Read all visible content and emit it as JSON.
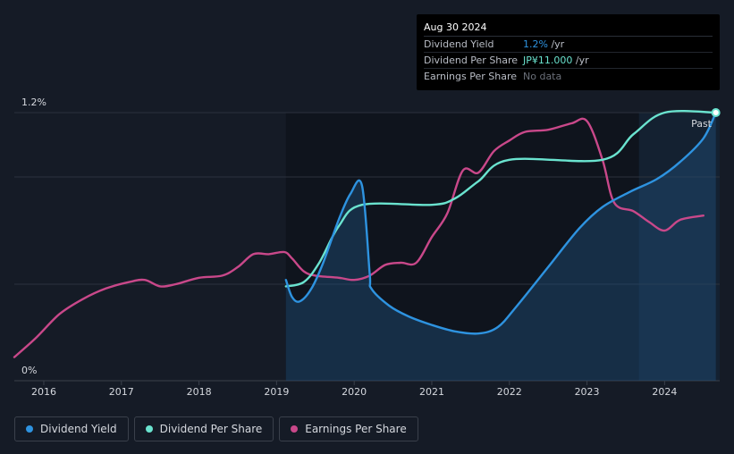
{
  "tooltip": {
    "date": "Aug 30 2024",
    "rows": [
      {
        "label": "Dividend Yield",
        "value": "1.2%",
        "unit": " /yr",
        "color": "#2e93e0"
      },
      {
        "label": "Dividend Per Share",
        "value": "JP¥11.000",
        "unit": " /yr",
        "color": "#6ae3cf"
      },
      {
        "label": "Earnings Per Share",
        "value": "No data",
        "unit": "",
        "color": "#6b707a"
      }
    ]
  },
  "past_label": "Past",
  "legend": [
    {
      "label": "Dividend Yield",
      "color": "#2e93e0"
    },
    {
      "label": "Dividend Per Share",
      "color": "#6ae3cf"
    },
    {
      "label": "Earnings Per Share",
      "color": "#c9488a"
    }
  ],
  "chart_data": {
    "type": "line",
    "title": "",
    "xlabel": "",
    "ylabel": "",
    "ylim": [
      0,
      1.2
    ],
    "y_ticks": [
      "0%",
      "1.2%"
    ],
    "x_ticks": [
      "2016",
      "2017",
      "2018",
      "2019",
      "2020",
      "2021",
      "2022",
      "2023",
      "2024"
    ],
    "xlim": [
      2015.62,
      2024.71
    ],
    "past_region_start": 2023.67,
    "grid": true,
    "legend_position": "bottom",
    "series": [
      {
        "name": "Dividend Yield",
        "color": "#2e93e0",
        "filled": true,
        "points": [
          [
            2019.12,
            0.42
          ],
          [
            2019.2,
            0.34
          ],
          [
            2019.3,
            0.32
          ],
          [
            2019.45,
            0.38
          ],
          [
            2019.6,
            0.5
          ],
          [
            2019.8,
            0.7
          ],
          [
            2019.95,
            0.82
          ],
          [
            2020.1,
            0.86
          ],
          [
            2020.2,
            0.45
          ],
          [
            2020.22,
            0.38
          ],
          [
            2020.45,
            0.3
          ],
          [
            2020.7,
            0.25
          ],
          [
            2021.0,
            0.21
          ],
          [
            2021.3,
            0.18
          ],
          [
            2021.6,
            0.17
          ],
          [
            2021.85,
            0.2
          ],
          [
            2022.1,
            0.3
          ],
          [
            2022.5,
            0.48
          ],
          [
            2022.9,
            0.66
          ],
          [
            2023.2,
            0.76
          ],
          [
            2023.55,
            0.83
          ],
          [
            2023.9,
            0.89
          ],
          [
            2024.2,
            0.97
          ],
          [
            2024.5,
            1.08
          ],
          [
            2024.66,
            1.2
          ]
        ]
      },
      {
        "name": "Dividend Per Share",
        "color": "#6ae3cf",
        "filled": false,
        "points": [
          [
            2019.12,
            0.39
          ],
          [
            2019.35,
            0.41
          ],
          [
            2019.55,
            0.5
          ],
          [
            2019.8,
            0.67
          ],
          [
            2020.1,
            0.77
          ],
          [
            2021.0,
            0.77
          ],
          [
            2021.3,
            0.8
          ],
          [
            2021.6,
            0.88
          ],
          [
            2022.0,
            0.98
          ],
          [
            2023.2,
            0.98
          ],
          [
            2023.6,
            1.1
          ],
          [
            2024.0,
            1.2
          ],
          [
            2024.66,
            1.2
          ]
        ]
      },
      {
        "name": "Earnings Per Share",
        "color": "#c9488a",
        "filled": false,
        "points": [
          [
            2015.62,
            0.06
          ],
          [
            2015.9,
            0.15
          ],
          [
            2016.2,
            0.26
          ],
          [
            2016.5,
            0.33
          ],
          [
            2016.8,
            0.38
          ],
          [
            2017.1,
            0.41
          ],
          [
            2017.3,
            0.42
          ],
          [
            2017.5,
            0.39
          ],
          [
            2017.7,
            0.4
          ],
          [
            2018.0,
            0.43
          ],
          [
            2018.3,
            0.44
          ],
          [
            2018.5,
            0.48
          ],
          [
            2018.7,
            0.54
          ],
          [
            2018.9,
            0.54
          ],
          [
            2019.1,
            0.55
          ],
          [
            2019.2,
            0.52
          ],
          [
            2019.35,
            0.46
          ],
          [
            2019.5,
            0.44
          ],
          [
            2019.8,
            0.43
          ],
          [
            2020.0,
            0.42
          ],
          [
            2020.2,
            0.44
          ],
          [
            2020.4,
            0.49
          ],
          [
            2020.6,
            0.5
          ],
          [
            2020.8,
            0.5
          ],
          [
            2021.0,
            0.62
          ],
          [
            2021.2,
            0.73
          ],
          [
            2021.4,
            0.93
          ],
          [
            2021.6,
            0.92
          ],
          [
            2021.8,
            1.02
          ],
          [
            2022.0,
            1.07
          ],
          [
            2022.2,
            1.11
          ],
          [
            2022.5,
            1.12
          ],
          [
            2022.8,
            1.15
          ],
          [
            2023.0,
            1.16
          ],
          [
            2023.2,
            0.98
          ],
          [
            2023.35,
            0.78
          ],
          [
            2023.6,
            0.74
          ],
          [
            2023.8,
            0.69
          ],
          [
            2024.0,
            0.65
          ],
          [
            2024.2,
            0.7
          ],
          [
            2024.5,
            0.72
          ]
        ]
      }
    ]
  }
}
